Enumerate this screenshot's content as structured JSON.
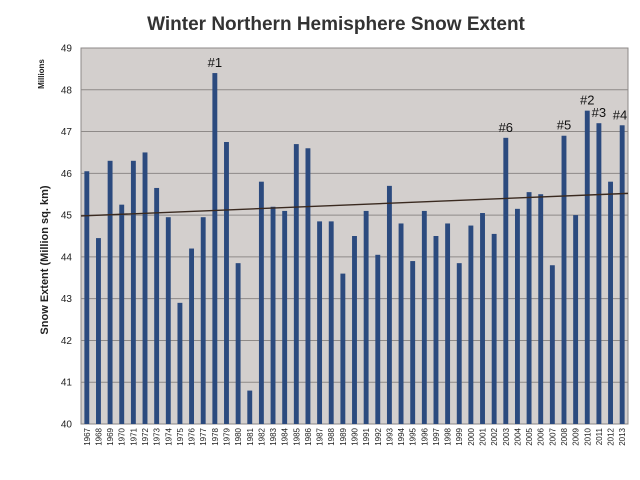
{
  "chart_data": {
    "type": "bar",
    "title": "Winter Northern Hemisphere Snow Extent",
    "ylabel": "Snow Extent (Million sq. km)",
    "units_label": "Millions",
    "ylim": [
      40,
      49
    ],
    "yticks": [
      40,
      41,
      42,
      43,
      44,
      45,
      46,
      47,
      48,
      49
    ],
    "grid": true,
    "categories": [
      "1967",
      "1968",
      "1969",
      "1970",
      "1971",
      "1972",
      "1973",
      "1974",
      "1975",
      "1976",
      "1977",
      "1978",
      "1979",
      "1980",
      "1981",
      "1982",
      "1983",
      "1984",
      "1985",
      "1986",
      "1987",
      "1988",
      "1989",
      "1990",
      "1991",
      "1992",
      "1993",
      "1994",
      "1995",
      "1996",
      "1997",
      "1998",
      "1999",
      "2000",
      "2001",
      "2002",
      "2003",
      "2004",
      "2005",
      "2006",
      "2007",
      "2008",
      "2009",
      "2010",
      "2011",
      "2012",
      "2013"
    ],
    "values": [
      46.05,
      44.45,
      46.3,
      45.25,
      46.3,
      46.5,
      45.65,
      44.95,
      42.9,
      44.2,
      44.95,
      48.4,
      46.75,
      43.85,
      40.8,
      45.8,
      45.2,
      45.1,
      46.7,
      46.6,
      44.85,
      44.85,
      43.6,
      44.5,
      45.1,
      44.05,
      45.7,
      44.8,
      43.9,
      45.1,
      44.5,
      44.8,
      43.85,
      44.75,
      45.05,
      44.55,
      46.85,
      45.15,
      45.55,
      45.5,
      43.8,
      46.9,
      45.0,
      47.5,
      47.2,
      45.8,
      47.15
    ],
    "trend": {
      "start": 44.98,
      "end": 45.52
    },
    "annotations": [
      {
        "label": "#1",
        "category": "1978"
      },
      {
        "label": "#2",
        "category": "2010"
      },
      {
        "label": "#3",
        "category": "2011"
      },
      {
        "label": "#4",
        "category": "2013"
      },
      {
        "label": "#5",
        "category": "2008"
      },
      {
        "label": "#6",
        "category": "2003"
      }
    ],
    "colors": {
      "bar": "#2b4a7e",
      "plot_bg": "#d3cfcd",
      "grid": "#8e8a88",
      "trend": "#3a2a20"
    }
  }
}
